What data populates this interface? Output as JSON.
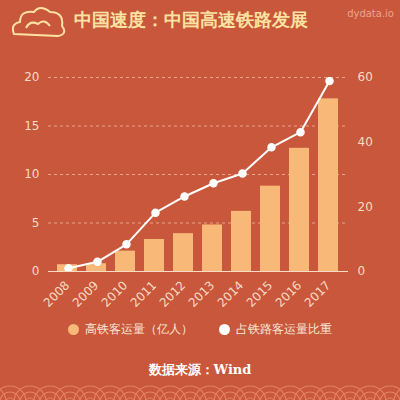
{
  "chart_data": {
    "type": "bar",
    "title": "中国速度：中国高速铁路发展",
    "watermark": "dydata.io",
    "source": "数据来源：Wind",
    "categories": [
      "2008",
      "2009",
      "2010",
      "2011",
      "2012",
      "2013",
      "2014",
      "2015",
      "2016",
      "2017"
    ],
    "series": [
      {
        "name": "高铁客运量（亿人）",
        "type": "bar",
        "color": "#f8b878",
        "values": [
          0.7,
          0.8,
          2.1,
          3.3,
          3.9,
          4.8,
          6.2,
          8.8,
          12.7,
          17.8
        ]
      },
      {
        "name": "占铁路客运量比重",
        "type": "line",
        "axis": "y2",
        "color": "#ffffff",
        "marker": "circle",
        "values": [
          1.0,
          3.0,
          8.4,
          18.2,
          23.2,
          27.3,
          30.3,
          38.4,
          43.1,
          58.9
        ]
      }
    ],
    "ylim": [
      0,
      20
    ],
    "yticks": [
      0,
      5,
      10,
      15,
      20
    ],
    "y2lim": [
      0,
      60
    ],
    "y2ticks": [
      0,
      20,
      40,
      60
    ],
    "grid": true,
    "legend": "bottom"
  }
}
